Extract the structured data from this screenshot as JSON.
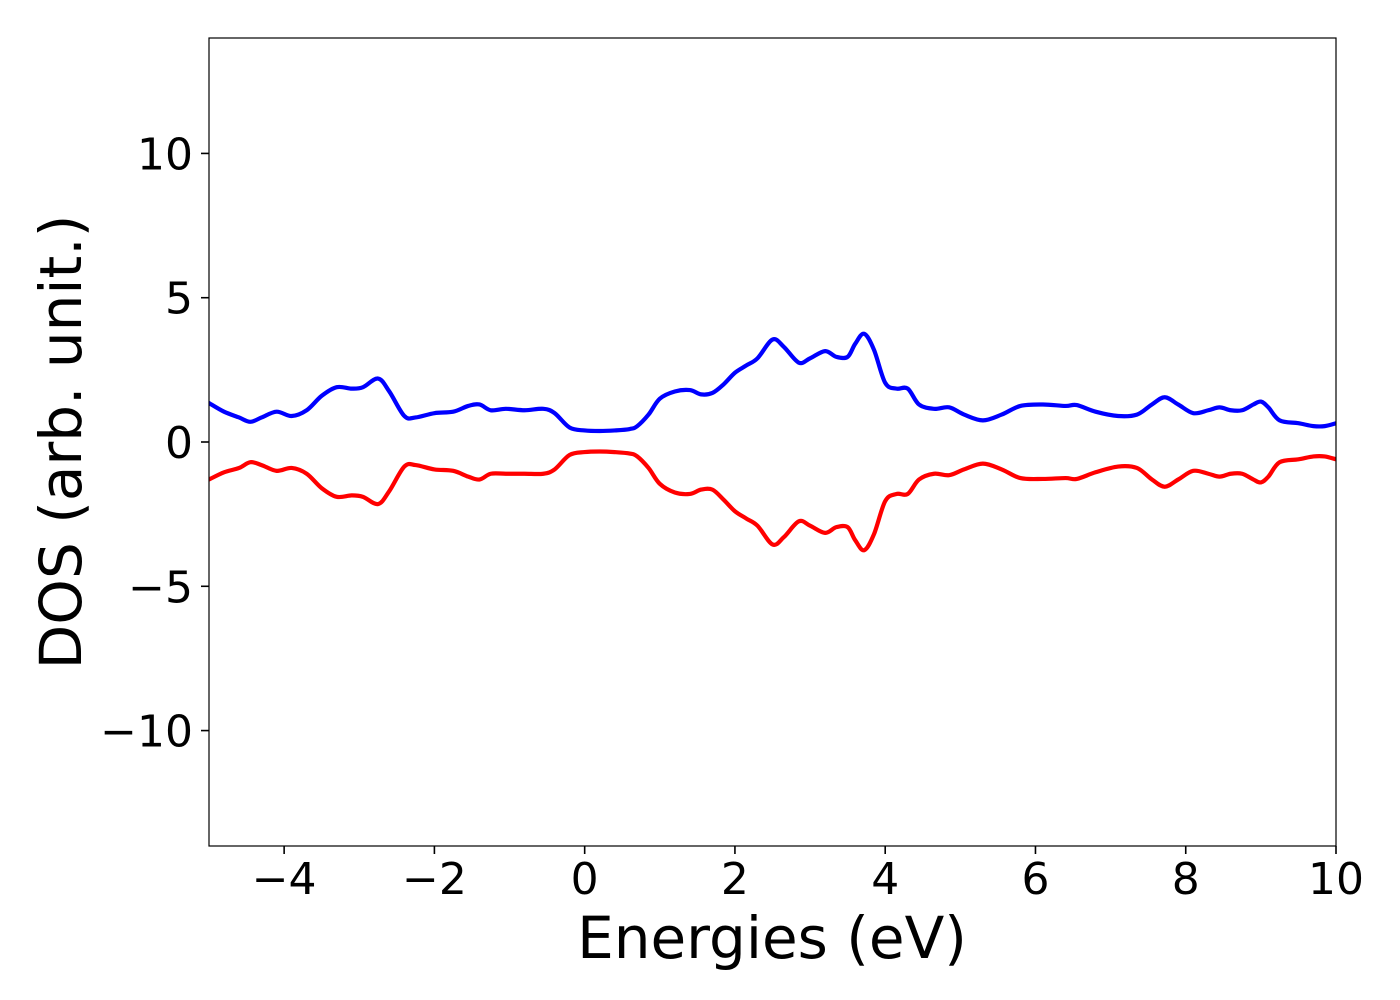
{
  "chart_data": {
    "type": "line",
    "title": "",
    "xlabel": "Energies (eV)",
    "ylabel": "DOS (arb. unit.)",
    "xlim": [
      -5,
      10
    ],
    "ylim": [
      -14,
      14
    ],
    "grid": false,
    "legend": "none",
    "x_ticks": [
      -4,
      -2,
      0,
      2,
      4,
      6,
      8,
      10
    ],
    "x_tick_labels": [
      "−4",
      "−2",
      "0",
      "2",
      "4",
      "6",
      "8",
      "10"
    ],
    "y_ticks": [
      -10,
      -5,
      0,
      5,
      10
    ],
    "y_tick_labels": [
      "−10",
      "−5",
      "0",
      "5",
      "10"
    ],
    "series": [
      {
        "color": "#0000ff",
        "x": [
          -5.0,
          -4.8,
          -4.6,
          -4.45,
          -4.3,
          -4.1,
          -3.9,
          -3.7,
          -3.5,
          -3.3,
          -3.1,
          -2.95,
          -2.75,
          -2.6,
          -2.4,
          -2.25,
          -2.0,
          -1.75,
          -1.55,
          -1.4,
          -1.25,
          -1.05,
          -0.8,
          -0.55,
          -0.4,
          -0.2,
          0.0,
          0.2,
          0.4,
          0.6,
          0.7,
          0.85,
          1.0,
          1.2,
          1.4,
          1.55,
          1.7,
          1.85,
          2.0,
          2.15,
          2.3,
          2.5,
          2.65,
          2.85,
          3.0,
          3.2,
          3.35,
          3.5,
          3.6,
          3.72,
          3.85,
          4.0,
          4.15,
          4.3,
          4.45,
          4.65,
          4.85,
          5.05,
          5.3,
          5.55,
          5.8,
          6.1,
          6.4,
          6.55,
          6.8,
          7.1,
          7.35,
          7.55,
          7.72,
          7.9,
          8.1,
          8.3,
          8.45,
          8.6,
          8.75,
          8.9,
          9.0,
          9.1,
          9.25,
          9.5,
          9.7,
          9.85,
          10.0
        ],
        "y": [
          1.35,
          1.05,
          0.85,
          0.7,
          0.85,
          1.05,
          0.9,
          1.1,
          1.6,
          1.9,
          1.85,
          1.9,
          2.2,
          1.75,
          0.9,
          0.85,
          1.0,
          1.05,
          1.25,
          1.3,
          1.1,
          1.15,
          1.1,
          1.15,
          1.0,
          0.5,
          0.4,
          0.38,
          0.4,
          0.45,
          0.55,
          0.95,
          1.5,
          1.75,
          1.8,
          1.65,
          1.7,
          2.0,
          2.4,
          2.65,
          2.9,
          3.55,
          3.3,
          2.75,
          2.9,
          3.15,
          2.95,
          2.95,
          3.4,
          3.75,
          3.2,
          2.05,
          1.85,
          1.85,
          1.3,
          1.15,
          1.2,
          0.95,
          0.75,
          0.95,
          1.25,
          1.3,
          1.25,
          1.28,
          1.05,
          0.9,
          0.95,
          1.3,
          1.55,
          1.3,
          1.0,
          1.1,
          1.2,
          1.1,
          1.1,
          1.3,
          1.4,
          1.2,
          0.75,
          0.65,
          0.55,
          0.55,
          0.65
        ]
      },
      {
        "color": "#ff0000",
        "x": [
          -5.0,
          -4.8,
          -4.6,
          -4.45,
          -4.3,
          -4.1,
          -3.9,
          -3.7,
          -3.5,
          -3.3,
          -3.1,
          -2.95,
          -2.75,
          -2.6,
          -2.4,
          -2.25,
          -2.0,
          -1.75,
          -1.55,
          -1.4,
          -1.25,
          -1.05,
          -0.8,
          -0.55,
          -0.4,
          -0.2,
          0.0,
          0.2,
          0.4,
          0.6,
          0.7,
          0.85,
          1.0,
          1.2,
          1.4,
          1.55,
          1.7,
          1.85,
          2.0,
          2.15,
          2.3,
          2.5,
          2.65,
          2.85,
          3.0,
          3.2,
          3.35,
          3.5,
          3.6,
          3.72,
          3.85,
          4.0,
          4.15,
          4.3,
          4.45,
          4.65,
          4.85,
          5.05,
          5.3,
          5.55,
          5.8,
          6.1,
          6.4,
          6.55,
          6.8,
          7.1,
          7.35,
          7.55,
          7.72,
          7.9,
          8.1,
          8.3,
          8.45,
          8.6,
          8.75,
          8.9,
          9.0,
          9.1,
          9.25,
          9.5,
          9.7,
          9.85,
          10.0
        ],
        "y": [
          -1.3,
          -1.05,
          -0.9,
          -0.7,
          -0.8,
          -1.0,
          -0.9,
          -1.1,
          -1.6,
          -1.9,
          -1.85,
          -1.9,
          -2.15,
          -1.7,
          -0.85,
          -0.8,
          -0.95,
          -1.0,
          -1.2,
          -1.3,
          -1.1,
          -1.1,
          -1.1,
          -1.1,
          -0.95,
          -0.45,
          -0.35,
          -0.33,
          -0.35,
          -0.4,
          -0.5,
          -0.9,
          -1.45,
          -1.75,
          -1.8,
          -1.65,
          -1.65,
          -2.0,
          -2.4,
          -2.65,
          -2.9,
          -3.55,
          -3.3,
          -2.75,
          -2.9,
          -3.15,
          -2.95,
          -2.95,
          -3.4,
          -3.75,
          -3.2,
          -2.05,
          -1.8,
          -1.8,
          -1.3,
          -1.1,
          -1.15,
          -0.95,
          -0.75,
          -0.95,
          -1.25,
          -1.28,
          -1.25,
          -1.28,
          -1.05,
          -0.85,
          -0.9,
          -1.3,
          -1.55,
          -1.3,
          -1.0,
          -1.1,
          -1.2,
          -1.1,
          -1.1,
          -1.3,
          -1.4,
          -1.2,
          -0.7,
          -0.6,
          -0.5,
          -0.5,
          -0.6
        ]
      }
    ]
  }
}
